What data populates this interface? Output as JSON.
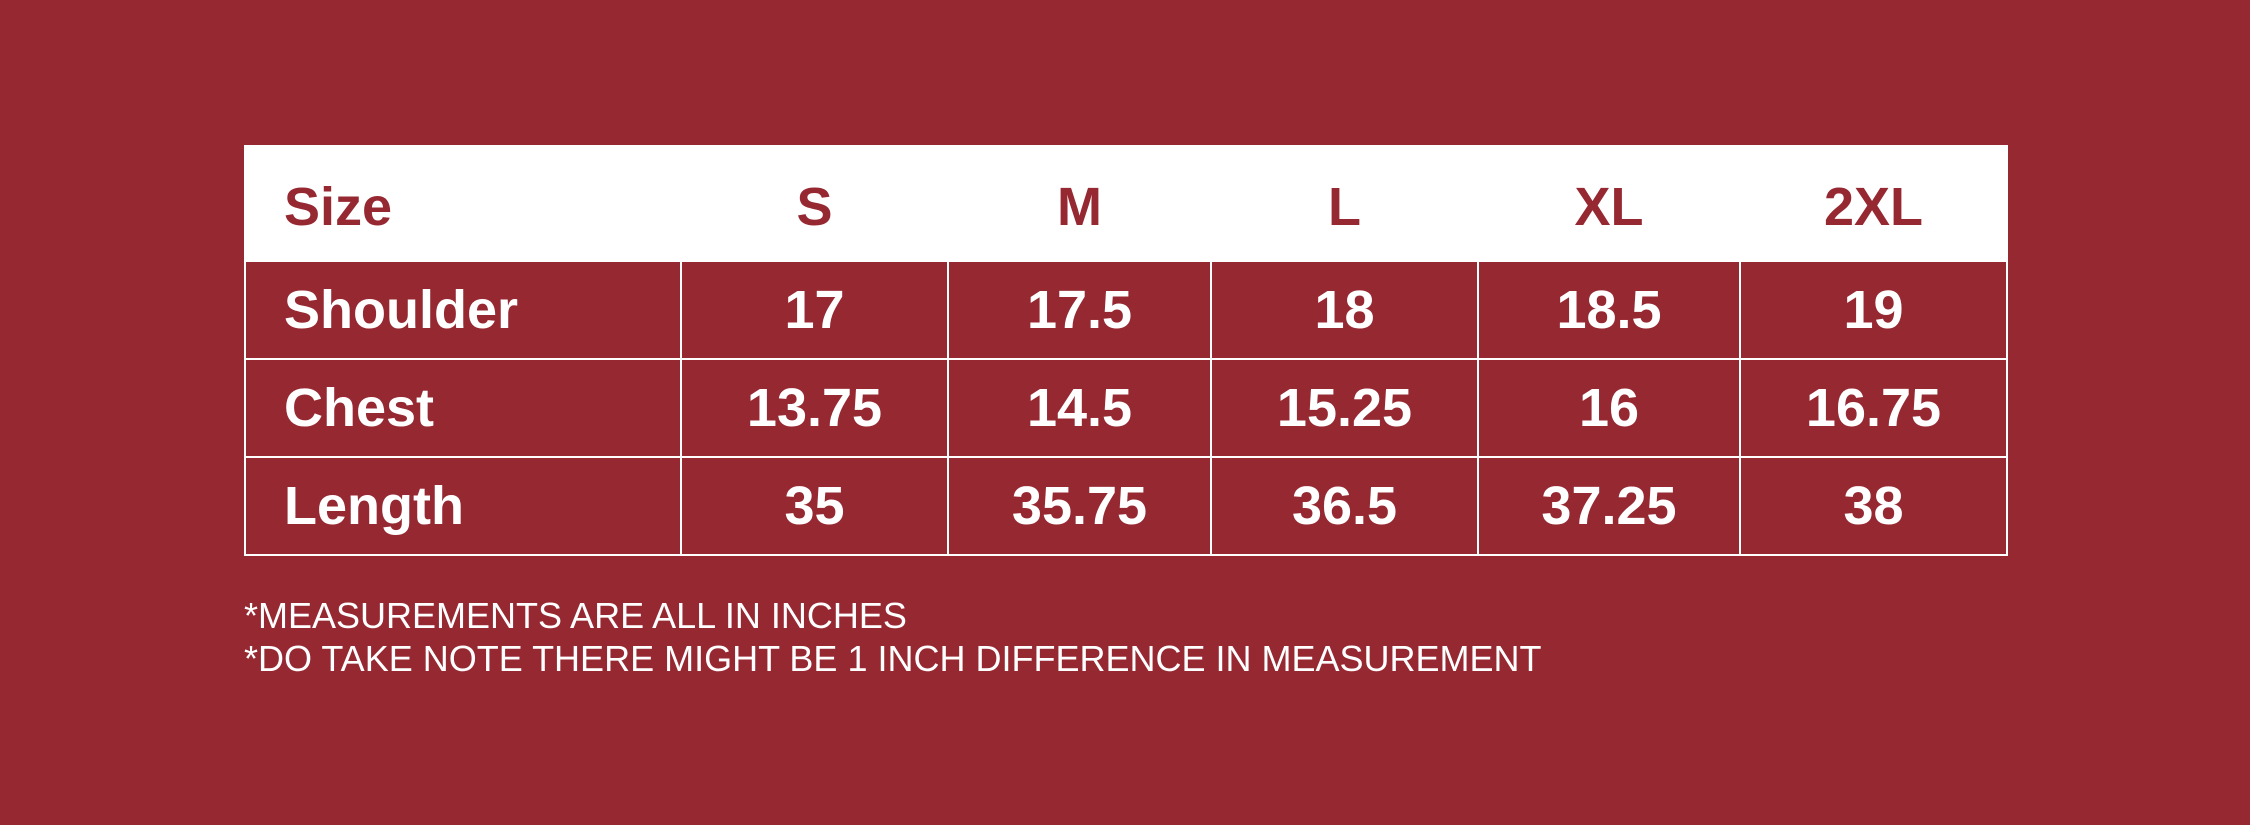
{
  "table": {
    "header": [
      "Size",
      "S",
      "M",
      "L",
      "XL",
      "2XL"
    ],
    "rows": [
      [
        "Shoulder",
        "17",
        "17.5",
        "18",
        "18.5",
        "19"
      ],
      [
        "Chest",
        "13.75",
        "14.5",
        "15.25",
        "16",
        "16.75"
      ],
      [
        "Length",
        "35",
        "35.75",
        "36.5",
        "37.25",
        "38"
      ]
    ]
  },
  "notes": [
    "*MEASUREMENTS ARE ALL IN INCHES",
    "*DO TAKE NOTE THERE MIGHT BE 1 INCH DIFFERENCE IN MEASUREMENT"
  ]
}
